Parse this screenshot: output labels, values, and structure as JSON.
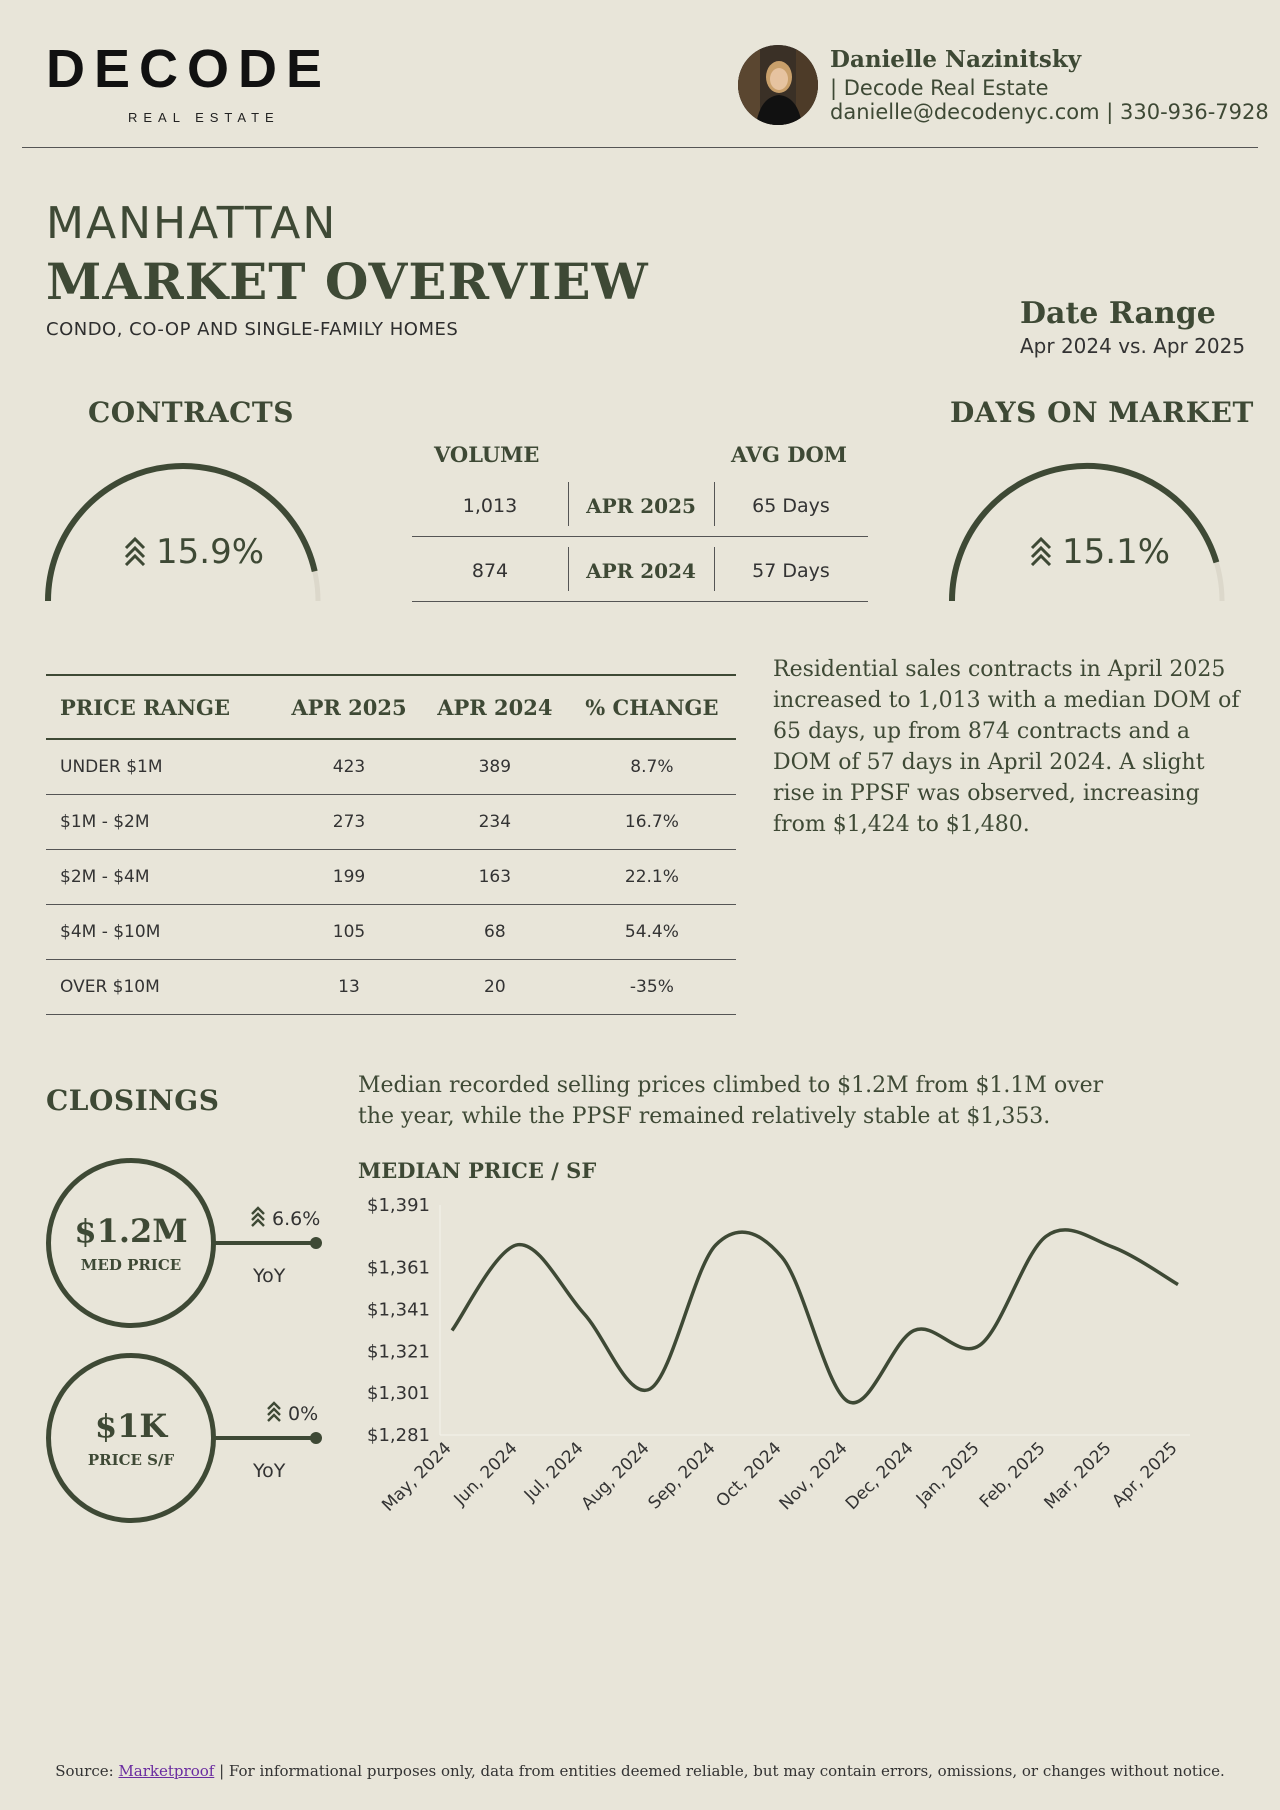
{
  "header": {
    "logo": "DECODE",
    "logo_sub": "REAL ESTATE",
    "agent_name": "Danielle Nazinitsky",
    "agent_company": "| Decode Real Estate",
    "agent_contact": "danielle@decodenyc.com | 330-936-7928"
  },
  "title": {
    "line1": "MANHATTAN",
    "line2": "MARKET OVERVIEW",
    "subtitle": "CONDO, CO-OP AND SINGLE-FAMILY HOMES"
  },
  "date_range": {
    "heading": "Date Range",
    "value": "Apr 2024 vs. Apr 2025"
  },
  "contracts": {
    "heading": "CONTRACTS",
    "change": "15.9%",
    "change_fraction": 0.159
  },
  "days_on_market": {
    "heading": "DAYS ON MARKET",
    "change": "15.1%",
    "change_fraction": 0.151
  },
  "volume_table": {
    "col_volume": "VOLUME",
    "col_dom": "AVG DOM",
    "rows": [
      {
        "volume": "1,013",
        "period": "APR 2025",
        "dom": "65 Days"
      },
      {
        "volume": "874",
        "period": "APR 2024",
        "dom": "57 Days"
      }
    ]
  },
  "price_table": {
    "headers": [
      "PRICE RANGE",
      "APR 2025",
      "APR 2024",
      "% CHANGE"
    ],
    "rows": [
      [
        "UNDER $1M",
        "423",
        "389",
        "8.7%"
      ],
      [
        "$1M - $2M",
        "273",
        "234",
        "16.7%"
      ],
      [
        "$2M - $4M",
        "199",
        "163",
        "22.1%"
      ],
      [
        "$4M - $10M",
        "105",
        "68",
        "54.4%"
      ],
      [
        "OVER $10M",
        "13",
        "20",
        "-35%"
      ]
    ]
  },
  "contracts_summary": "Residential sales contracts in April 2025 increased to 1,013 with a median DOM of 65 days, up from 874 contracts and a DOM of 57 days in April 2024. A slight rise in PPSF was observed, increasing from $1,424 to $1,480.",
  "closings": {
    "heading": "CLOSINGS",
    "summary": "Median recorded selling prices climbed to $1.2M from $1.1M over the year, while the PPSF remained relatively stable at $1,353.",
    "med_price": {
      "value": "$1.2M",
      "label": "MED PRICE",
      "change": "6.6%",
      "period": "YoY"
    },
    "price_sf": {
      "value": "$1K",
      "label": "PRICE S/F",
      "change": "0%",
      "period": "YoY"
    }
  },
  "chart_data": {
    "type": "line",
    "title": "MEDIAN PRICE / SF",
    "categories": [
      "May, 2024",
      "Jun, 2024",
      "Jul, 2024",
      "Aug, 2024",
      "Sep, 2024",
      "Oct, 2024",
      "Nov, 2024",
      "Dec, 2024",
      "Jan, 2025",
      "Feb, 2025",
      "Mar, 2025",
      "Apr, 2025"
    ],
    "values": [
      1331,
      1372,
      1339,
      1303,
      1372,
      1366,
      1297,
      1331,
      1324,
      1376,
      1371,
      1353
    ],
    "y_ticks": [
      "$1,391",
      "$1,361",
      "$1,341",
      "$1,321",
      "$1,301",
      "$1,281"
    ],
    "y_tick_values": [
      1391,
      1361,
      1341,
      1321,
      1301,
      1281
    ],
    "ylim": [
      1281,
      1391
    ],
    "grid": false,
    "color": "#3e4935"
  },
  "footer": {
    "prefix": "Source:",
    "link": "Marketproof",
    "text": "| For informational purposes only, data from entities deemed reliable, but may contain errors, omissions, or changes without notice."
  }
}
